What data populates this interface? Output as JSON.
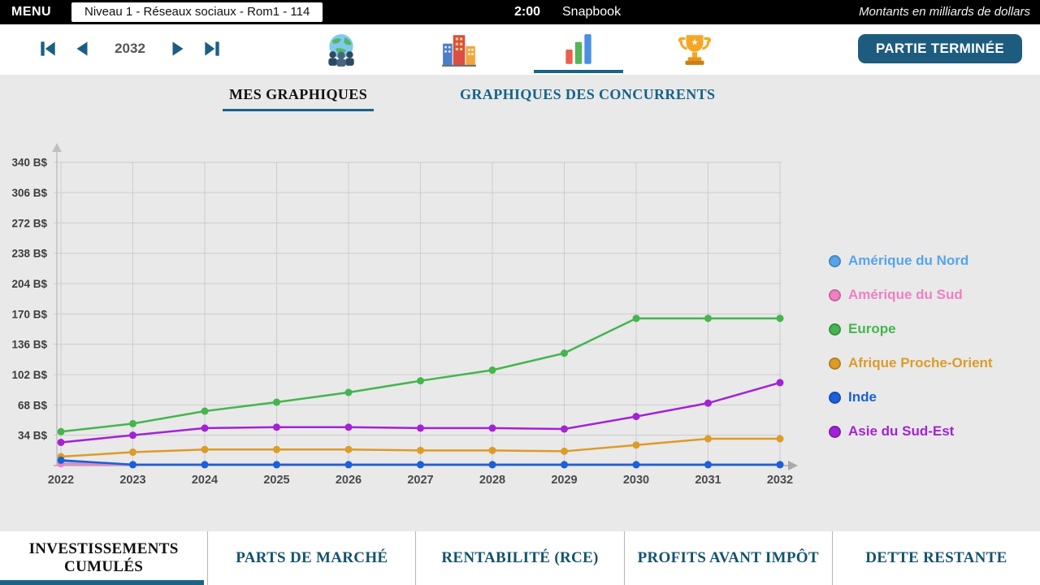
{
  "top_bar": {
    "menu_label": "MENU",
    "level_title": "Niveau 1 - Réseaux sociaux - Rom1 - 114",
    "timer": "2:00",
    "company": "Snapbook",
    "units_note": "Montants en milliards de dollars"
  },
  "toolbar": {
    "year": "2032",
    "end_button": "PARTIE TERMINÉE",
    "nav_icons": [
      "skip-to-start-icon",
      "previous-year-icon",
      "next-year-icon",
      "skip-to-end-icon"
    ],
    "section_icons": [
      "world-people-icon",
      "city-buildings-icon",
      "bar-chart-icon",
      "trophy-icon"
    ],
    "active_section": "bar-chart-icon"
  },
  "graph_tabs": {
    "mine": "MES GRAPHIQUES",
    "competitors": "GRAPHIQUES DES CONCURRENTS",
    "active": "mine"
  },
  "colors": {
    "accent_teal": "#1a6385",
    "button_teal": "#1d5c7e",
    "topbar_black": "#000000",
    "page_background": "#e9e9e9"
  },
  "chart_data": {
    "type": "line",
    "title": "",
    "xlabel": "",
    "ylabel": "",
    "y_unit": "B$",
    "x": [
      2022,
      2023,
      2024,
      2025,
      2026,
      2027,
      2028,
      2029,
      2030,
      2031,
      2032
    ],
    "yticks": [
      34,
      68,
      102,
      136,
      170,
      204,
      238,
      272,
      306,
      340
    ],
    "ylim": [
      0,
      360
    ],
    "grid": true,
    "legend_position": "right",
    "series": [
      {
        "name": "Amérique du Nord",
        "color": "#56a5ea",
        "values": [
          5,
          1,
          1,
          1,
          1,
          1,
          1,
          1,
          1,
          1,
          1
        ]
      },
      {
        "name": "Amérique du Sud",
        "color": "#f07fc4",
        "values": [
          2,
          1,
          1,
          1,
          1,
          1,
          1,
          1,
          1,
          1,
          1
        ]
      },
      {
        "name": "Europe",
        "color": "#45b54e",
        "values": [
          38,
          47,
          61,
          71,
          82,
          95,
          107,
          126,
          165,
          165,
          165
        ]
      },
      {
        "name": "Afrique Proche-Orient",
        "color": "#dd9b28",
        "values": [
          10,
          15,
          18,
          18,
          18,
          17,
          17,
          16,
          23,
          30,
          30
        ]
      },
      {
        "name": "Inde",
        "color": "#1b5fd9",
        "values": [
          6,
          1,
          1,
          1,
          1,
          1,
          1,
          1,
          1,
          1,
          1
        ]
      },
      {
        "name": "Asie du Sud-Est",
        "color": "#a322d6",
        "values": [
          26,
          34,
          42,
          43,
          43,
          42,
          42,
          41,
          55,
          70,
          93
        ]
      }
    ]
  },
  "bottom_tabs": [
    {
      "label": "INVESTISSEMENTS CUMULÉS",
      "active": true
    },
    {
      "label": "PARTS DE MARCHÉ",
      "active": false
    },
    {
      "label": "RENTABILITÉ (RCE)",
      "active": false
    },
    {
      "label": "PROFITS AVANT IMPÔT",
      "active": false
    },
    {
      "label": "DETTE RESTANTE",
      "active": false
    }
  ]
}
